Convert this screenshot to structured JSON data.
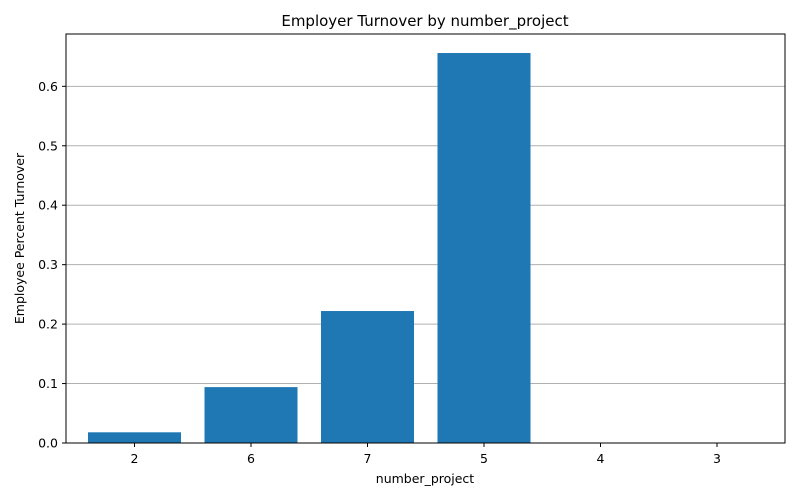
{
  "chart_data": {
    "type": "bar",
    "title": "Employer Turnover by number_project",
    "xlabel": "number_project",
    "ylabel": "Employee Percent Turnover",
    "categories": [
      "2",
      "6",
      "7",
      "5",
      "4",
      "3"
    ],
    "values": [
      0.018,
      0.094,
      0.222,
      0.656,
      0.0,
      0.0
    ],
    "ylim": [
      0,
      0.688
    ],
    "yticks": [
      0.0,
      0.1,
      0.2,
      0.3,
      0.4,
      0.5,
      0.6
    ],
    "ytick_labels": [
      "0.0",
      "0.1",
      "0.2",
      "0.3",
      "0.4",
      "0.5",
      "0.6"
    ],
    "grid": {
      "y": true,
      "x": false
    },
    "bar_color": "#1f77b4",
    "grid_color": "#b0b0b0"
  }
}
